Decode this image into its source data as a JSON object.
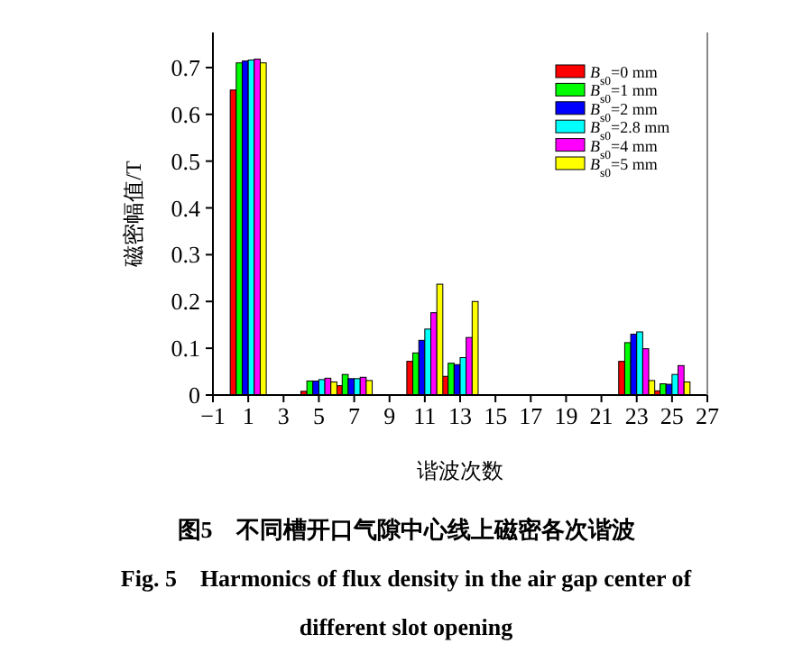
{
  "chart_data": {
    "type": "bar",
    "xlabel": "谐波次数",
    "ylabel": "磁密幅值/T",
    "xlim": [
      -1,
      27
    ],
    "xticks": [
      -1,
      1,
      3,
      5,
      7,
      9,
      11,
      13,
      15,
      17,
      19,
      21,
      23,
      25,
      27
    ],
    "ylim": [
      0,
      0.775
    ],
    "yticks": [
      0,
      0.1,
      0.2,
      0.3,
      0.4,
      0.5,
      0.6,
      0.7
    ],
    "x": [
      1,
      5,
      7,
      11,
      13,
      23,
      25
    ],
    "legend": "top right",
    "series": [
      {
        "name": "*B*$_{s0}$=0 mm",
        "color": "#ff0000",
        "values": [
          0.652,
          0.008,
          0.02,
          0.072,
          0.04,
          0.072,
          0.009
        ]
      },
      {
        "name": "*B*$_{s0}$=1 mm",
        "color": "#00ff00",
        "values": [
          0.71,
          0.03,
          0.044,
          0.09,
          0.068,
          0.112,
          0.024
        ]
      },
      {
        "name": "*B*$_{s0}$=2 mm",
        "color": "#0000ff",
        "values": [
          0.714,
          0.03,
          0.035,
          0.117,
          0.065,
          0.13,
          0.023
        ]
      },
      {
        "name": "*B*$_{s0}$=2.8 mm",
        "color": "#00ffff",
        "values": [
          0.716,
          0.033,
          0.035,
          0.141,
          0.08,
          0.135,
          0.044
        ]
      },
      {
        "name": "*B*$_{s0}$=4 mm",
        "color": "#ff00ff",
        "values": [
          0.718,
          0.036,
          0.038,
          0.176,
          0.123,
          0.099,
          0.063
        ]
      },
      {
        "name": "*B*$_{s0}$=5 mm",
        "color": "#ffff00",
        "values": [
          0.71,
          0.028,
          0.031,
          0.237,
          0.2,
          0.031,
          0.028
        ]
      }
    ],
    "annotations": [
      "图5　不同槽开口气隙中心线上磁密各次谐波",
      "Fig. 5　Harmonics of flux density in the air gap center of different slot opening"
    ]
  }
}
